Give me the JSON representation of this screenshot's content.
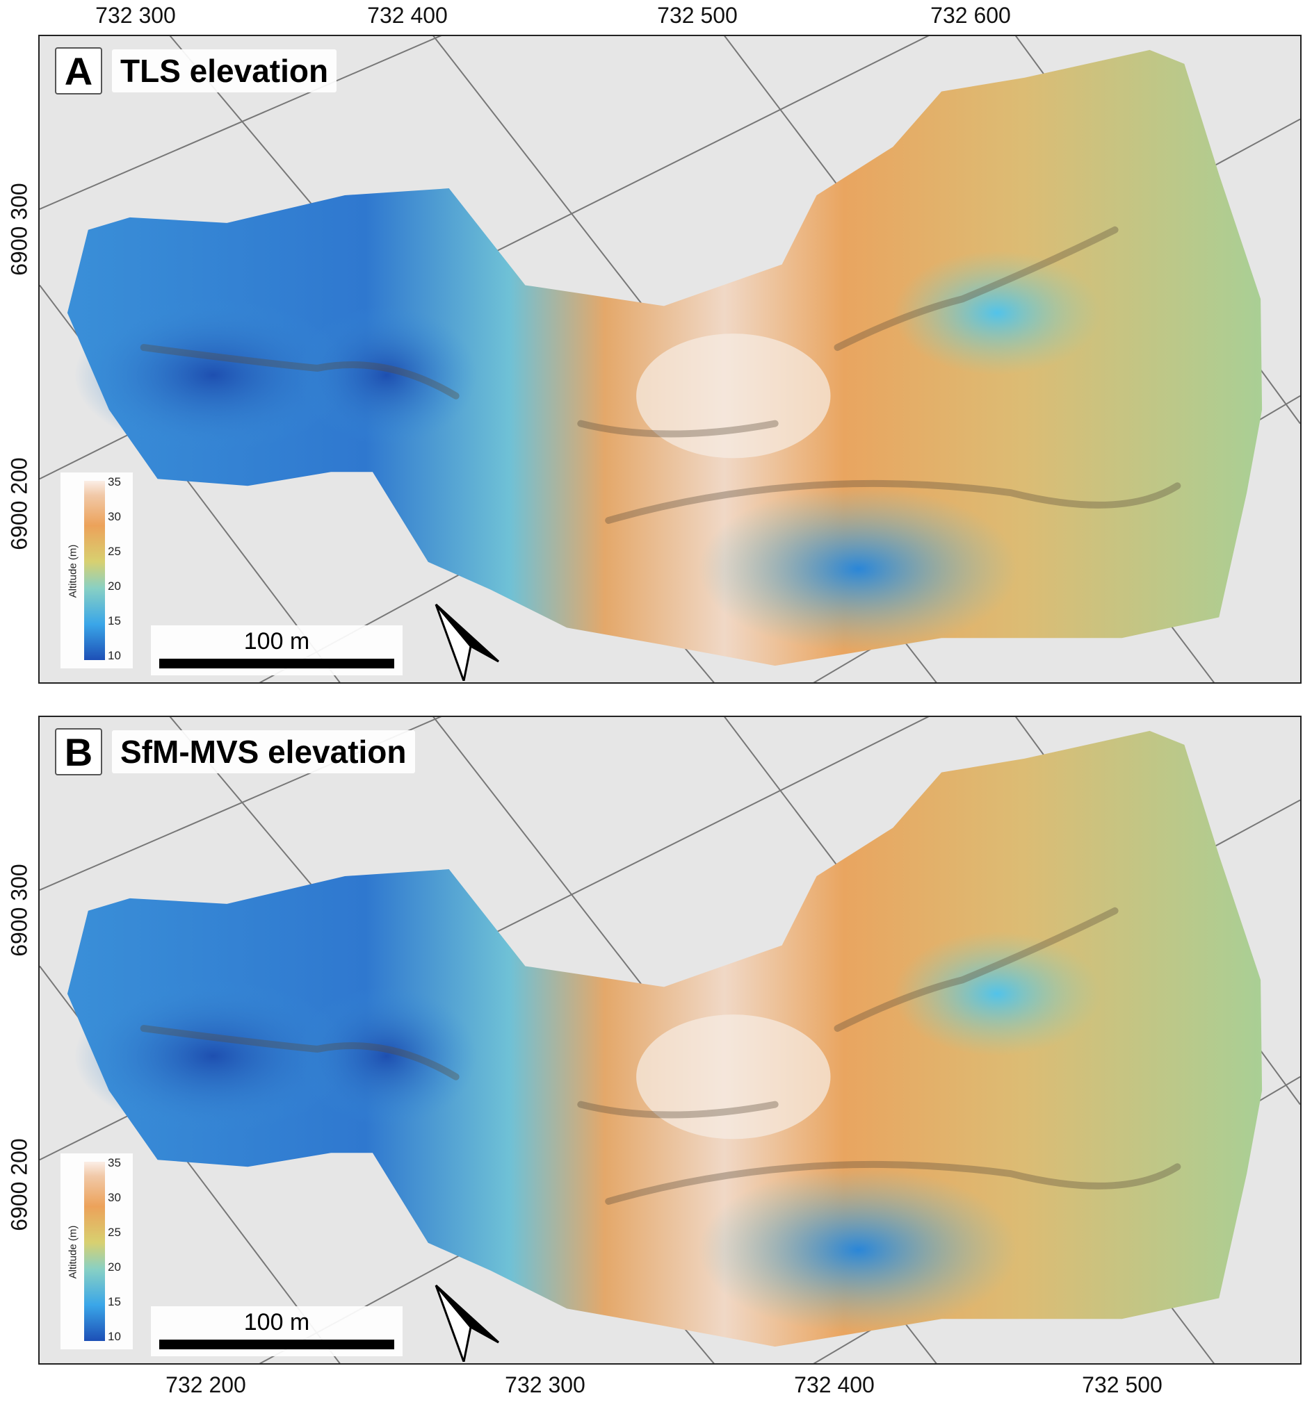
{
  "top_axis": {
    "ticks": [
      "732 300",
      "732 400",
      "732 500",
      "732 600"
    ]
  },
  "bottom_axis": {
    "ticks": [
      "732 200",
      "732 300",
      "732 400",
      "732 500"
    ]
  },
  "panel_a": {
    "letter": "A",
    "title": "TLS elevation",
    "y_ticks": [
      "6900 300",
      "6900 200"
    ],
    "legend": {
      "title": "Altitude (m)",
      "ticks": [
        "35",
        "30",
        "25",
        "20",
        "15",
        "10"
      ]
    },
    "scale": "100 m"
  },
  "panel_b": {
    "letter": "B",
    "title": "SfM-MVS elevation",
    "y_ticks": [
      "6900 300",
      "6900 200"
    ],
    "legend": {
      "title": "Altitude (m)",
      "ticks": [
        "35",
        "30",
        "25",
        "20",
        "15",
        "10"
      ]
    },
    "scale": "100 m"
  },
  "colors": {
    "low": "#1d4fb6",
    "mid_low": "#3aa6e8",
    "mid": "#d8d070",
    "high": "#eca25a",
    "peak": "#fbeee6"
  }
}
